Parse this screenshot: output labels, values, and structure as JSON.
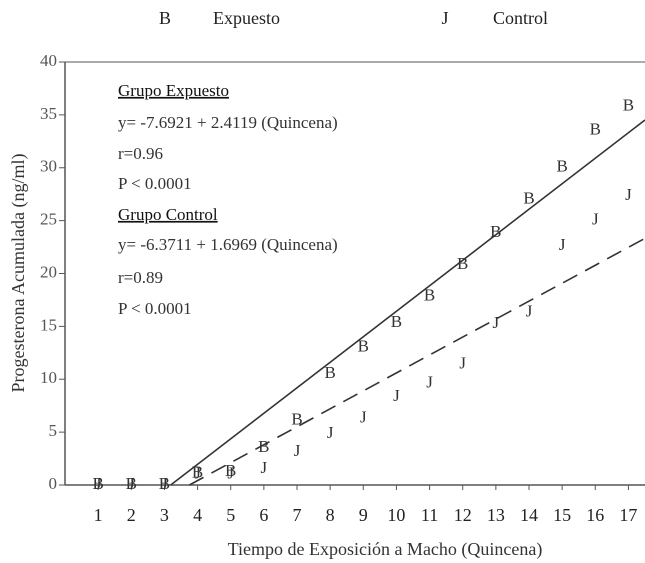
{
  "chart_data": {
    "type": "scatter",
    "x_label": "Tiempo de Exposición a Macho (Quincena)",
    "y_label": "Progesterona Acumulada (ng/ml)",
    "x": [
      1,
      2,
      3,
      4,
      5,
      6,
      7,
      8,
      9,
      10,
      11,
      12,
      13,
      14,
      15,
      16,
      17
    ],
    "series": [
      {
        "name": "Expuesto",
        "marker": "B",
        "color": "#333333",
        "line_style": "solid",
        "values": [
          0,
          0,
          0,
          1.1,
          1.2,
          3.5,
          6.1,
          10.5,
          13,
          15.3,
          17.8,
          20.8,
          23.8,
          27,
          30,
          33.5,
          35.8
        ],
        "trendline": {
          "intercept": -7.6921,
          "slope": 2.4119
        }
      },
      {
        "name": "Control",
        "marker": "J",
        "color": "#333333",
        "line_style": "dashed",
        "values": [
          0,
          0,
          0,
          1,
          1,
          1.5,
          3.1,
          4.8,
          6.3,
          8.3,
          9.6,
          11.4,
          15.2,
          16.3,
          22.6,
          25,
          27.3
        ],
        "trendline": {
          "intercept": -6.3711,
          "slope": 1.6969
        }
      }
    ],
    "annotations": [
      "Grupo Expuesto",
      "y= -7.6921 + 2.4119 (Quincena)",
      "r=0.96",
      "P < 0.0001",
      "Grupo Control",
      "y= -6.3711 + 1.6969 (Quincena)",
      "r=0.89",
      "P < 0.0001"
    ],
    "xlim": [
      0,
      17.5
    ],
    "ylim": [
      0,
      40
    ],
    "xticks": [
      1,
      2,
      3,
      4,
      5,
      6,
      7,
      8,
      9,
      10,
      11,
      12,
      13,
      14,
      15,
      16,
      17
    ],
    "yticks": [
      0,
      5,
      10,
      15,
      20,
      25,
      30,
      35,
      40
    ]
  }
}
